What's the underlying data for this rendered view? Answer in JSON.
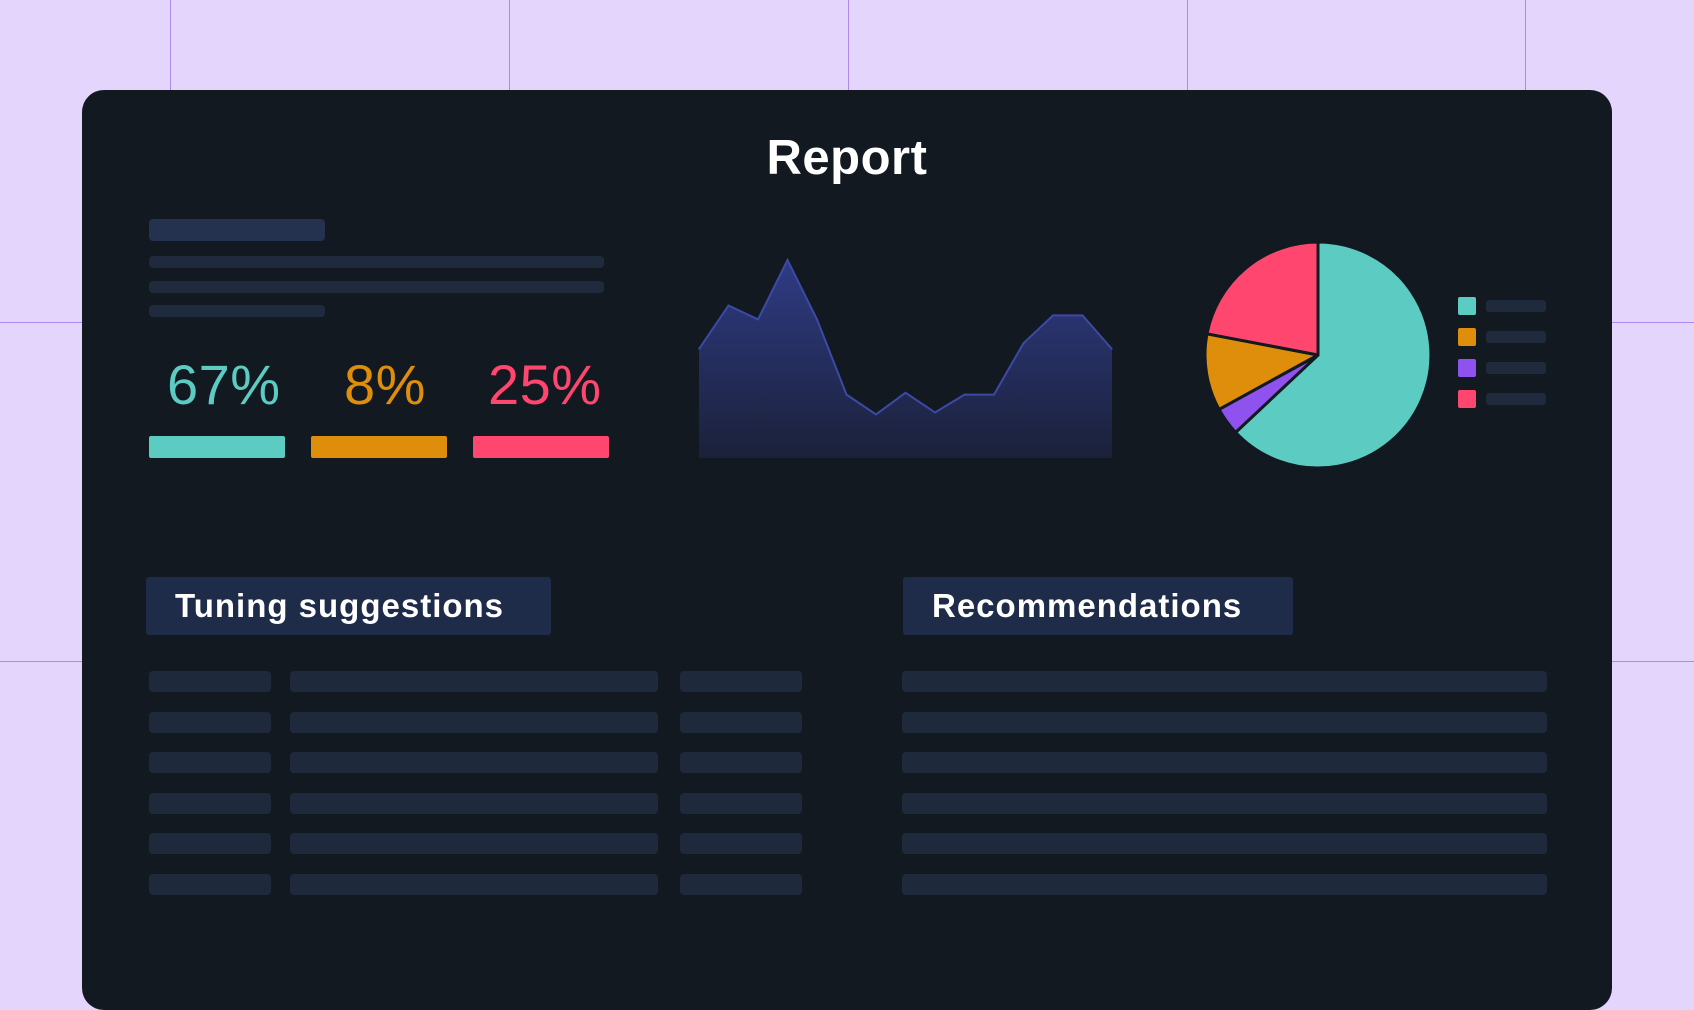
{
  "report": {
    "title": "Report"
  },
  "metrics": [
    {
      "label": "67%",
      "value": 67,
      "color": "#5ccbc2"
    },
    {
      "label": "8%",
      "value": 8,
      "color": "#de8e0a"
    },
    {
      "label": "25%",
      "value": 25,
      "color": "#ff466e"
    }
  ],
  "area_chart_color": "#2e3b84",
  "chart_data": [
    {
      "type": "area",
      "x": [
        0,
        1,
        2,
        3,
        4,
        5,
        6,
        7,
        8,
        9,
        10,
        11,
        12,
        13,
        14
      ],
      "values": [
        55,
        77,
        70,
        100,
        70,
        32,
        22,
        33,
        23,
        32,
        32,
        58,
        72,
        72,
        55
      ],
      "ylim": [
        0,
        100
      ]
    },
    {
      "type": "pie",
      "series": [
        {
          "value": 63,
          "color": "#5ccbc2"
        },
        {
          "value": 4,
          "color": "#8f52ee"
        },
        {
          "value": 11,
          "color": "#de8e0a"
        },
        {
          "value": 22,
          "color": "#ff466e"
        }
      ]
    }
  ],
  "legend": [
    {
      "color": "#5ccbc2"
    },
    {
      "color": "#de8e0a"
    },
    {
      "color": "#8f52ee"
    },
    {
      "color": "#ff466e"
    }
  ],
  "sections": {
    "tuning": {
      "title": "Tuning suggestions"
    },
    "recommendations": {
      "title": "Recommendations"
    }
  }
}
